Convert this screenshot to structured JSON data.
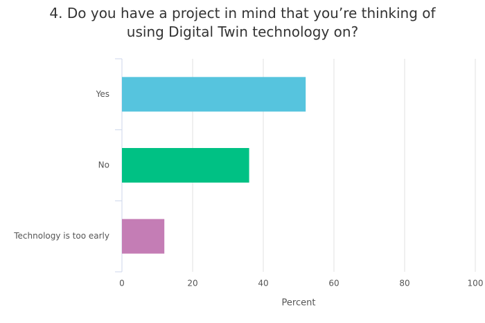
{
  "chart_data": {
    "type": "bar",
    "title": "4. Do you have a project in mind that you’re thinking of using Digital Twin technology on?",
    "categories": [
      "Yes",
      "No",
      "Technology is too early"
    ],
    "values": [
      52,
      36,
      12
    ],
    "colors": [
      "#56c4de",
      "#00c184",
      "#c47db5"
    ],
    "xlabel": "Percent",
    "xlim": [
      0,
      100
    ],
    "xticks": [
      0,
      20,
      40,
      60,
      80,
      100
    ],
    "grid": true
  }
}
